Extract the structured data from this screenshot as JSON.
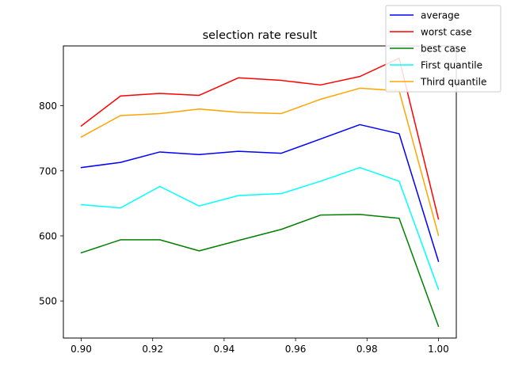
{
  "chart_data": {
    "type": "line",
    "title": "selection rate result",
    "xlabel": "",
    "ylabel": "",
    "x": [
      0.9,
      0.911,
      0.922,
      0.933,
      0.944,
      0.956,
      0.967,
      0.978,
      0.989,
      1.0
    ],
    "xlim": [
      0.895,
      1.005
    ],
    "ylim": [
      443,
      892
    ],
    "xticks": [
      0.9,
      0.92,
      0.94,
      0.96,
      0.98,
      1.0
    ],
    "xtick_labels": [
      "0.90",
      "0.92",
      "0.94",
      "0.96",
      "0.98",
      "1.00"
    ],
    "yticks": [
      500,
      600,
      700,
      800
    ],
    "ytick_labels": [
      "500",
      "600",
      "700",
      "800"
    ],
    "grid": false,
    "legend_position": "top-right",
    "series": [
      {
        "name": "average",
        "color": "#0000ff",
        "values": [
          705,
          713,
          729,
          725,
          730,
          727,
          749,
          771,
          757,
          561
        ]
      },
      {
        "name": "worst case",
        "color": "#ff0000",
        "values": [
          769,
          815,
          819,
          816,
          843,
          839,
          832,
          845,
          873,
          626
        ]
      },
      {
        "name": "best case",
        "color": "#008000",
        "values": [
          574,
          594,
          594,
          577,
          593,
          610,
          632,
          633,
          627,
          461
        ]
      },
      {
        "name": "First quantile",
        "color": "#00ffff",
        "values": [
          648,
          643,
          676,
          646,
          662,
          665,
          684,
          705,
          684,
          518
        ]
      },
      {
        "name": "Third quantile",
        "color": "#ffa500",
        "values": [
          752,
          785,
          788,
          795,
          790,
          788,
          810,
          827,
          823,
          601
        ]
      }
    ]
  }
}
